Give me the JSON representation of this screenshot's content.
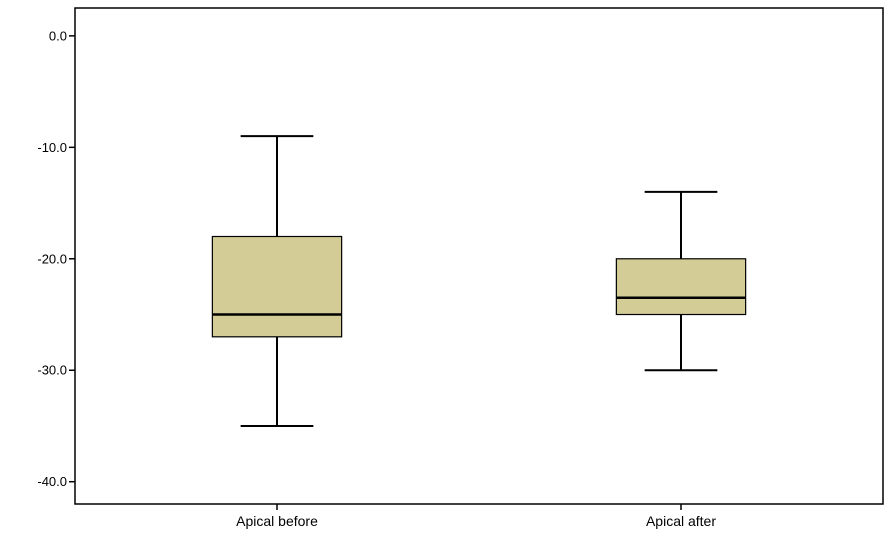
{
  "chart_data": {
    "type": "boxplot",
    "title": "",
    "xlabel": "",
    "ylabel": "",
    "ylim": [
      -42,
      2.5
    ],
    "yticks": [
      0,
      -10,
      -20,
      -30,
      -40
    ],
    "ytick_labels": [
      "0.0",
      "-10.0",
      "-20.0",
      "-30.0",
      "-40.0"
    ],
    "grid": false,
    "categories": [
      "Apical before",
      "Apical after"
    ],
    "boxes": [
      {
        "category": "Apical before",
        "whisker_high": -9,
        "q3": -18,
        "median": -25,
        "q1": -27,
        "whisker_low": -35
      },
      {
        "category": "Apical after",
        "whisker_high": -14,
        "q3": -20,
        "median": -23.5,
        "q1": -25,
        "whisker_low": -30
      }
    ],
    "colors": {
      "box_fill": "#d3cc96",
      "line": "#000000",
      "background": "#ffffff"
    }
  }
}
